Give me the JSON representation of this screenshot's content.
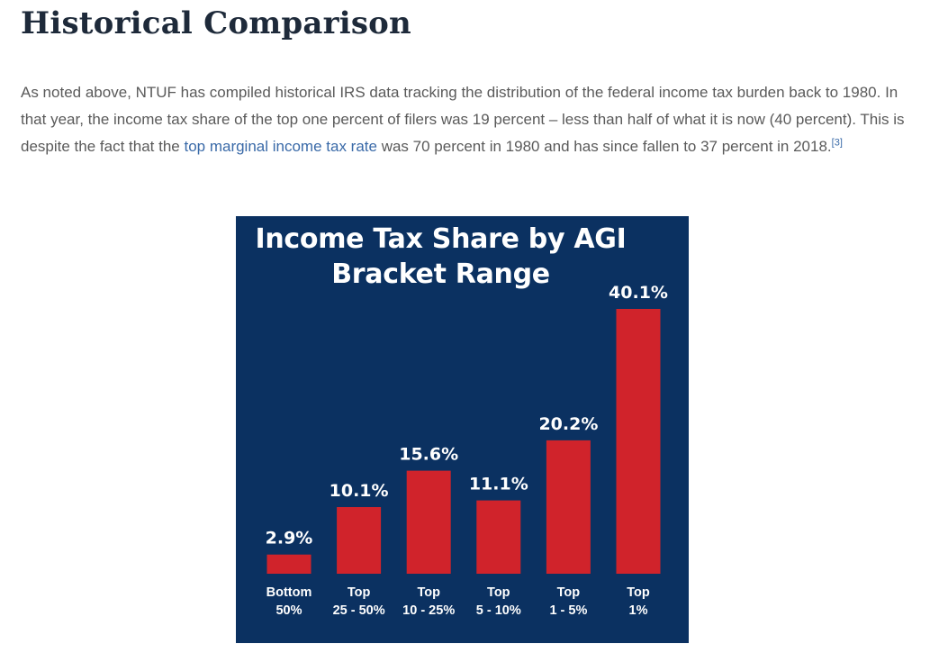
{
  "article": {
    "heading": "Historical Comparison",
    "para_text_1": "As noted above, NTUF has compiled historical IRS data tracking the distribution of the federal income tax burden back to 1980. In that year, the income tax share of the top one percent of filers was 19 percent – less than half of what it is now (40 percent). This is despite the fact that the ",
    "para_link": "top marginal income tax rate",
    "para_text_2": " was 70 percent in 1980 and has since fallen to 37 percent in 2018.",
    "footnote": "[3]"
  },
  "colors": {
    "chart_background": "#0b3161",
    "bar": "#d0232b",
    "text": "#ffffff"
  },
  "chart_data": {
    "type": "bar",
    "title": "Income Tax Share by AGI Bracket Range",
    "title_lines": [
      "Income Tax Share by AGI",
      "Bracket Range"
    ],
    "categories": [
      "Bottom 50%",
      "Top 25 - 50%",
      "Top 10 - 25%",
      "Top 5 - 10%",
      "Top 1 - 5%",
      "Top 1%"
    ],
    "category_lines": [
      [
        "Bottom",
        "50%"
      ],
      [
        "Top",
        "25 - 50%"
      ],
      [
        "Top",
        "10 - 25%"
      ],
      [
        "Top",
        "5 - 10%"
      ],
      [
        "Top",
        "1 - 5%"
      ],
      [
        "Top",
        "1%"
      ]
    ],
    "values": [
      2.9,
      10.1,
      15.6,
      11.1,
      20.2,
      40.1
    ],
    "data_labels": [
      "2.9%",
      "10.1%",
      "15.6%",
      "11.1%",
      "20.2%",
      "40.1%"
    ],
    "xlabel": "",
    "ylabel": "",
    "ylim": [
      0,
      40.1
    ],
    "grid": false,
    "legend": "none"
  }
}
